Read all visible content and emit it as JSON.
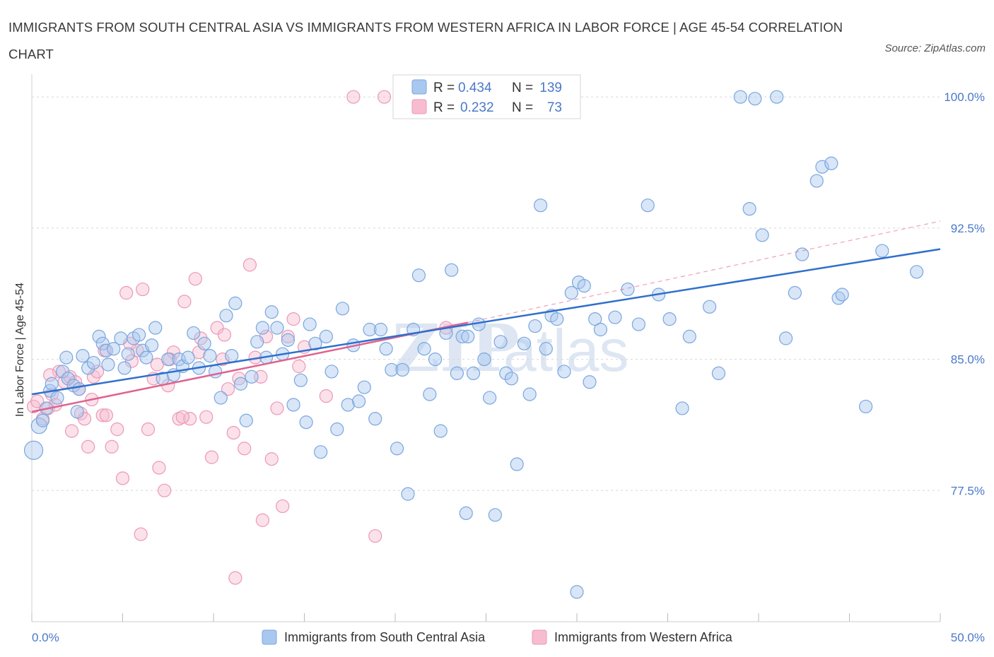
{
  "header": {
    "title": "IMMIGRANTS FROM SOUTH CENTRAL ASIA VS IMMIGRANTS FROM WESTERN AFRICA IN LABOR FORCE | AGE 45-54 CORRELATION CHART",
    "source": "Source: ZipAtlas.com"
  },
  "watermark": {
    "part1": "ZIP",
    "part2": "atlas"
  },
  "legend_top": {
    "r_label": "R =",
    "n_label": "N =",
    "series1": {
      "r": "0.434",
      "n": "139"
    },
    "series2": {
      "r": "0.232",
      "n": "73"
    }
  },
  "legend_bottom": {
    "series1": "Immigrants from South Central Asia",
    "series2": "Immigrants from Western Africa"
  },
  "colors": {
    "series1_fill": "#a9c8f0",
    "series1_stroke": "#7aa6dd",
    "series1_line": "#2f6fcc",
    "series2_fill": "#f7bcd0",
    "series2_stroke": "#ec98b5",
    "series2_line": "#e0628f",
    "grid": "#d8d8d8",
    "tick_label": "#4a78c8"
  },
  "chart_data": {
    "type": "scatter",
    "xlabel": "",
    "ylabel": "In Labor Force | Age 45-54",
    "xlim": [
      0,
      50
    ],
    "ylim": [
      70,
      101.3
    ],
    "x_tick_labels": [
      {
        "value": 0,
        "label": "0.0%"
      },
      {
        "value": 50,
        "label": "50.0%"
      }
    ],
    "y_tick_labels": [
      {
        "value": 77.5,
        "label": "77.5%"
      },
      {
        "value": 85.0,
        "label": "85.0%"
      },
      {
        "value": 92.5,
        "label": "92.5%"
      },
      {
        "value": 100.0,
        "label": "100.0%"
      }
    ],
    "grid": "horizontal dashed",
    "legend": "top-center",
    "series": [
      {
        "name": "Immigrants from South Central Asia",
        "trend": {
          "x": [
            0,
            50
          ],
          "y": [
            83.0,
            91.3
          ]
        },
        "points": [
          [
            0.1,
            79.8
          ],
          [
            0.4,
            81.2
          ],
          [
            0.6,
            81.5
          ],
          [
            0.8,
            82.2
          ],
          [
            1.0,
            83.2
          ],
          [
            1.1,
            83.6
          ],
          [
            1.4,
            82.8
          ],
          [
            1.7,
            84.3
          ],
          [
            1.9,
            85.1
          ],
          [
            2.0,
            83.9
          ],
          [
            2.3,
            83.5
          ],
          [
            2.5,
            82.0
          ],
          [
            2.6,
            83.3
          ],
          [
            2.8,
            85.2
          ],
          [
            3.1,
            84.5
          ],
          [
            3.4,
            84.8
          ],
          [
            3.7,
            86.3
          ],
          [
            3.9,
            85.9
          ],
          [
            4.1,
            85.5
          ],
          [
            4.2,
            84.7
          ],
          [
            4.5,
            85.6
          ],
          [
            4.9,
            86.2
          ],
          [
            5.1,
            84.5
          ],
          [
            5.3,
            85.3
          ],
          [
            5.6,
            86.2
          ],
          [
            5.9,
            86.4
          ],
          [
            6.1,
            85.5
          ],
          [
            6.3,
            85.1
          ],
          [
            6.6,
            85.8
          ],
          [
            6.8,
            86.8
          ],
          [
            7.2,
            83.9
          ],
          [
            7.5,
            85.0
          ],
          [
            7.8,
            84.1
          ],
          [
            8.1,
            85.0
          ],
          [
            8.3,
            84.6
          ],
          [
            8.6,
            85.1
          ],
          [
            8.9,
            86.5
          ],
          [
            9.2,
            84.5
          ],
          [
            9.5,
            85.9
          ],
          [
            9.8,
            85.2
          ],
          [
            10.1,
            84.3
          ],
          [
            10.4,
            82.8
          ],
          [
            10.7,
            87.5
          ],
          [
            11.0,
            85.2
          ],
          [
            11.2,
            88.2
          ],
          [
            11.5,
            83.6
          ],
          [
            11.8,
            81.5
          ],
          [
            12.1,
            84.0
          ],
          [
            12.4,
            86.0
          ],
          [
            12.7,
            86.8
          ],
          [
            12.9,
            85.1
          ],
          [
            13.2,
            87.7
          ],
          [
            13.5,
            86.8
          ],
          [
            13.8,
            85.3
          ],
          [
            14.1,
            86.1
          ],
          [
            14.4,
            82.4
          ],
          [
            14.8,
            83.8
          ],
          [
            15.1,
            81.4
          ],
          [
            15.3,
            87.0
          ],
          [
            15.6,
            85.9
          ],
          [
            15.9,
            79.7
          ],
          [
            16.2,
            86.3
          ],
          [
            16.5,
            84.3
          ],
          [
            16.8,
            81.0
          ],
          [
            17.1,
            87.9
          ],
          [
            17.4,
            82.4
          ],
          [
            17.7,
            85.8
          ],
          [
            18.0,
            82.6
          ],
          [
            18.3,
            83.4
          ],
          [
            18.6,
            86.7
          ],
          [
            18.9,
            81.6
          ],
          [
            19.2,
            86.7
          ],
          [
            19.5,
            85.6
          ],
          [
            19.8,
            84.4
          ],
          [
            20.1,
            79.9
          ],
          [
            20.4,
            84.4
          ],
          [
            20.7,
            77.3
          ],
          [
            21.0,
            86.7
          ],
          [
            21.3,
            89.8
          ],
          [
            21.6,
            85.6
          ],
          [
            21.9,
            83.0
          ],
          [
            22.2,
            85.0
          ],
          [
            22.5,
            80.9
          ],
          [
            22.8,
            86.5
          ],
          [
            23.1,
            90.1
          ],
          [
            23.4,
            84.2
          ],
          [
            23.7,
            86.3
          ],
          [
            24.0,
            86.3
          ],
          [
            24.3,
            84.2
          ],
          [
            24.6,
            87.0
          ],
          [
            24.9,
            85.0
          ],
          [
            25.2,
            82.8
          ],
          [
            25.5,
            76.1
          ],
          [
            25.8,
            86.0
          ],
          [
            26.1,
            84.2
          ],
          [
            26.4,
            83.9
          ],
          [
            26.7,
            79.0
          ],
          [
            27.1,
            85.9
          ],
          [
            27.4,
            83.0
          ],
          [
            27.7,
            86.9
          ],
          [
            28.0,
            93.8
          ],
          [
            28.3,
            85.6
          ],
          [
            28.6,
            87.5
          ],
          [
            28.9,
            87.3
          ],
          [
            29.3,
            84.3
          ],
          [
            29.7,
            88.8
          ],
          [
            30.1,
            89.4
          ],
          [
            30.4,
            89.2
          ],
          [
            30.7,
            83.7
          ],
          [
            31.0,
            87.3
          ],
          [
            31.3,
            86.7
          ],
          [
            32.1,
            87.4
          ],
          [
            32.8,
            89.0
          ],
          [
            33.4,
            87.0
          ],
          [
            33.9,
            93.8
          ],
          [
            34.5,
            88.7
          ],
          [
            35.1,
            87.3
          ],
          [
            35.8,
            82.2
          ],
          [
            36.2,
            86.3
          ],
          [
            37.3,
            88.0
          ],
          [
            37.8,
            84.2
          ],
          [
            39.0,
            100.0
          ],
          [
            39.5,
            93.6
          ],
          [
            40.2,
            92.1
          ],
          [
            41.0,
            100.0
          ],
          [
            41.5,
            86.2
          ],
          [
            42.0,
            88.8
          ],
          [
            42.4,
            91.0
          ],
          [
            43.2,
            95.2
          ],
          [
            43.5,
            96.0
          ],
          [
            44.0,
            96.2
          ],
          [
            44.4,
            88.5
          ],
          [
            44.6,
            88.7
          ],
          [
            45.9,
            82.3
          ],
          [
            46.8,
            91.2
          ],
          [
            48.7,
            90.0
          ],
          [
            30.0,
            71.7
          ],
          [
            23.9,
            76.2
          ],
          [
            39.8,
            99.9
          ]
        ]
      },
      {
        "name": "Immigrants from Western Africa",
        "trend": {
          "x": [
            0,
            24.0
          ],
          "y": [
            82.0,
            87.1
          ]
        },
        "trend_extension": {
          "x": [
            24.0,
            50
          ],
          "y": [
            87.1,
            92.9
          ]
        },
        "points": [
          [
            0.1,
            82.3
          ],
          [
            0.3,
            82.6
          ],
          [
            0.6,
            81.6
          ],
          [
            0.9,
            82.2
          ],
          [
            1.1,
            83.0
          ],
          [
            1.3,
            82.4
          ],
          [
            1.5,
            84.3
          ],
          [
            1.8,
            83.7
          ],
          [
            2.1,
            84.0
          ],
          [
            2.4,
            83.7
          ],
          [
            2.7,
            81.9
          ],
          [
            2.9,
            81.6
          ],
          [
            3.1,
            80.0
          ],
          [
            3.4,
            84.0
          ],
          [
            3.6,
            84.3
          ],
          [
            3.9,
            81.8
          ],
          [
            4.1,
            81.8
          ],
          [
            4.4,
            80.0
          ],
          [
            4.7,
            81.0
          ],
          [
            5.0,
            78.2
          ],
          [
            5.2,
            88.8
          ],
          [
            5.5,
            84.9
          ],
          [
            5.8,
            85.5
          ],
          [
            6.1,
            89.0
          ],
          [
            6.4,
            81.0
          ],
          [
            6.7,
            83.9
          ],
          [
            7.0,
            78.8
          ],
          [
            7.3,
            77.5
          ],
          [
            7.5,
            83.5
          ],
          [
            7.8,
            85.4
          ],
          [
            8.1,
            81.6
          ],
          [
            8.4,
            88.3
          ],
          [
            8.7,
            81.6
          ],
          [
            9.0,
            89.6
          ],
          [
            9.3,
            86.2
          ],
          [
            9.6,
            81.7
          ],
          [
            9.9,
            79.4
          ],
          [
            10.2,
            86.8
          ],
          [
            10.5,
            85.0
          ],
          [
            10.8,
            83.3
          ],
          [
            11.1,
            80.8
          ],
          [
            11.4,
            83.9
          ],
          [
            11.7,
            79.9
          ],
          [
            12.0,
            90.4
          ],
          [
            12.3,
            85.1
          ],
          [
            12.6,
            84.0
          ],
          [
            12.9,
            86.3
          ],
          [
            13.2,
            79.3
          ],
          [
            13.5,
            82.2
          ],
          [
            13.8,
            76.6
          ],
          [
            14.1,
            86.3
          ],
          [
            14.4,
            87.3
          ],
          [
            14.7,
            84.6
          ],
          [
            15.0,
            85.7
          ],
          [
            4.0,
            85.5
          ],
          [
            5.4,
            85.9
          ],
          [
            6.9,
            84.7
          ],
          [
            7.6,
            85.0
          ],
          [
            8.3,
            81.7
          ],
          [
            9.2,
            85.4
          ],
          [
            10.6,
            86.4
          ],
          [
            2.6,
            83.3
          ],
          [
            16.2,
            82.9
          ],
          [
            17.7,
            100.0
          ],
          [
            19.4,
            100.0
          ],
          [
            6.0,
            75.0
          ],
          [
            11.2,
            72.5
          ],
          [
            12.7,
            75.8
          ],
          [
            18.9,
            74.9
          ],
          [
            22.8,
            86.8
          ],
          [
            1.0,
            84.1
          ],
          [
            3.3,
            82.7
          ],
          [
            2.2,
            80.9
          ]
        ]
      }
    ]
  }
}
